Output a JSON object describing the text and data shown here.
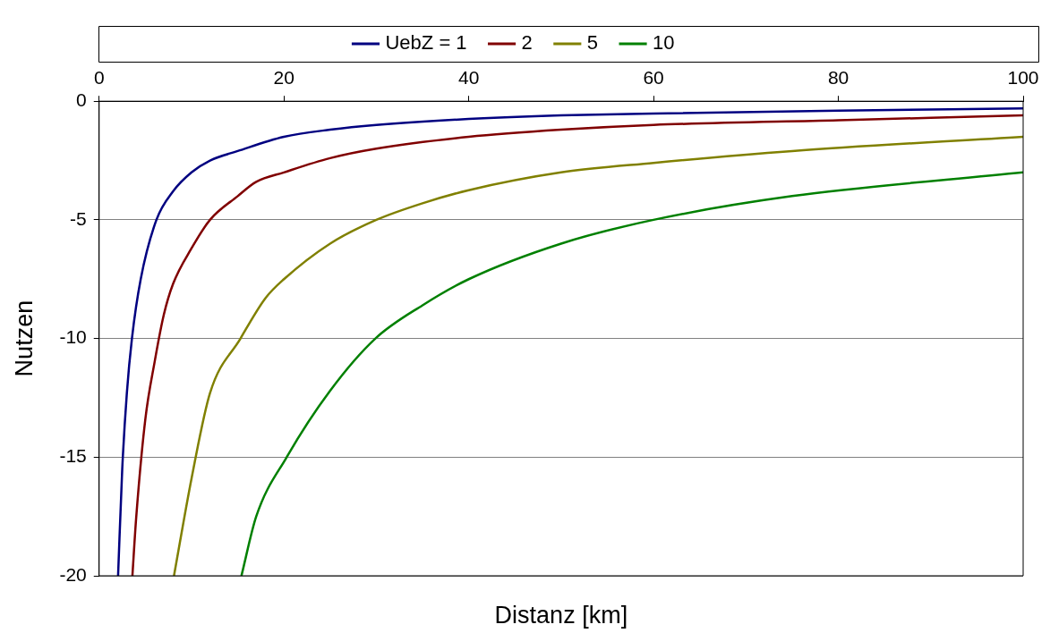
{
  "chart_data": {
    "type": "line",
    "xlabel": "Distanz [km]",
    "ylabel": "Nutzen",
    "xlim": [
      0,
      100
    ],
    "xticks": [
      0,
      20,
      40,
      60,
      80,
      100
    ],
    "ylim": [
      -20,
      0
    ],
    "yticks": [
      -20,
      -15,
      -10,
      -5,
      0
    ],
    "grid": "y",
    "legend": "top",
    "marker": "none",
    "line_style": "solid",
    "series": [
      {
        "name": "UebZ = 1",
        "color": "#000080",
        "x": [
          2.05,
          2.5,
          3,
          3.55,
          4.5,
          6.2,
          8,
          10,
          12,
          15,
          20,
          25,
          30,
          40,
          50,
          60,
          80,
          100
        ],
        "values": [
          -20,
          -15.5,
          -12.3,
          -10,
          -7.5,
          -5,
          -3.8,
          -3,
          -2.5,
          -2.1,
          -1.5,
          -1.2,
          -1,
          -0.75,
          -0.6,
          -0.52,
          -0.4,
          -0.3
        ]
      },
      {
        "name": "2",
        "color": "#800000",
        "x": [
          3.6,
          4,
          5,
          6,
          7,
          8,
          10,
          12,
          15,
          17,
          20,
          25,
          30,
          40,
          50,
          60,
          80,
          100
        ],
        "values": [
          -20,
          -17.6,
          -13.4,
          -11,
          -9,
          -7.7,
          -6.2,
          -5,
          -4,
          -3.4,
          -3,
          -2.4,
          -2,
          -1.5,
          -1.2,
          -1,
          -0.8,
          -0.6
        ]
      },
      {
        "name": "5",
        "color": "#808000",
        "x": [
          8.1,
          10,
          12,
          15.3,
          18,
          20,
          25,
          30,
          35,
          40,
          50,
          60,
          75,
          100
        ],
        "values": [
          -20,
          -15.9,
          -12.3,
          -10,
          -8.3,
          -7.5,
          -6,
          -5,
          -4.3,
          -3.75,
          -3,
          -2.6,
          -2.1,
          -1.5
        ]
      },
      {
        "name": "10",
        "color": "#008000",
        "x": [
          15.4,
          17,
          20.3,
          25,
          29.9,
          35,
          40,
          50,
          60,
          75,
          100
        ],
        "values": [
          -20,
          -17.5,
          -15,
          -12.2,
          -10,
          -8.6,
          -7.5,
          -6,
          -5,
          -4,
          -3
        ]
      }
    ]
  }
}
